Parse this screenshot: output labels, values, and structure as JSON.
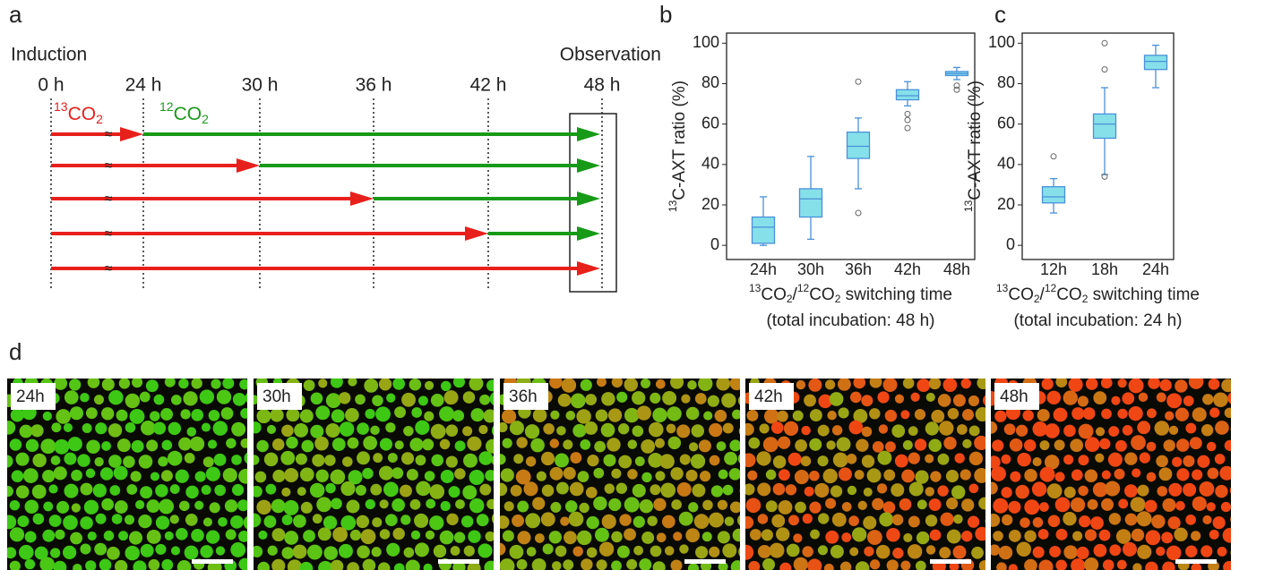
{
  "panel_letters": [
    "a",
    "b",
    "c",
    "d"
  ],
  "timeline": {
    "start_label": "Induction",
    "end_label": "Observation",
    "times": [
      "0 h",
      "24 h",
      "30 h",
      "36 h",
      "42 h",
      "48 h"
    ],
    "label13": [
      "13",
      "CO",
      "2"
    ],
    "label12": [
      "12",
      "CO",
      "2"
    ]
  },
  "chart_data": [
    {
      "type": "box",
      "ylabel": [
        "13",
        "C-AXT ratio (%)"
      ],
      "xlabel": [
        "13",
        "CO",
        "2",
        "/",
        "12",
        "CO",
        "2",
        " switching time"
      ],
      "subtitle": "(total incubation: 48 h)",
      "categories": [
        "24h",
        "30h",
        "36h",
        "42h",
        "48h"
      ],
      "color": "#86e0ea",
      "line_color": "#4a90d9",
      "boxes": [
        {
          "low": 0,
          "q1": 1,
          "median": 9,
          "q3": 14,
          "high": 24,
          "outliers": []
        },
        {
          "low": 3,
          "q1": 14,
          "median": 23,
          "q3": 28,
          "high": 44,
          "outliers": []
        },
        {
          "low": 28,
          "q1": 43,
          "median": 49,
          "q3": 56,
          "high": 63,
          "outliers": [
            81,
            16
          ]
        },
        {
          "low": 69,
          "q1": 72,
          "median": 74,
          "q3": 77,
          "high": 81,
          "outliers": [
            65,
            62,
            58
          ]
        },
        {
          "low": 82,
          "q1": 84,
          "median": 85,
          "q3": 86,
          "high": 88,
          "outliers": [
            79,
            77
          ]
        }
      ],
      "ylim": [
        -7,
        105
      ],
      "yticks": [
        0,
        20,
        40,
        60,
        80,
        100
      ]
    },
    {
      "type": "box",
      "ylabel": [
        "13",
        "C-AXT ratio (%)"
      ],
      "xlabel": [
        "13",
        "CO",
        "2",
        "/",
        "12",
        "CO",
        "2",
        " switching time"
      ],
      "subtitle": "(total incubation: 24 h)",
      "categories": [
        "12h",
        "18h",
        "24h"
      ],
      "color": "#86e0ea",
      "line_color": "#4a90d9",
      "boxes": [
        {
          "low": 16,
          "q1": 21,
          "median": 24,
          "q3": 29,
          "high": 33,
          "outliers": [
            44
          ]
        },
        {
          "low": 35,
          "q1": 53,
          "median": 60,
          "q3": 65,
          "high": 78,
          "outliers": [
            87,
            100,
            34
          ]
        },
        {
          "low": 78,
          "q1": 87,
          "median": 91,
          "q3": 94,
          "high": 99,
          "outliers": []
        }
      ],
      "ylim": [
        -7,
        105
      ],
      "yticks": [
        0,
        20,
        40,
        60,
        80,
        100
      ]
    }
  ],
  "images": [
    "24h",
    "30h",
    "36h",
    "42h",
    "48h"
  ]
}
